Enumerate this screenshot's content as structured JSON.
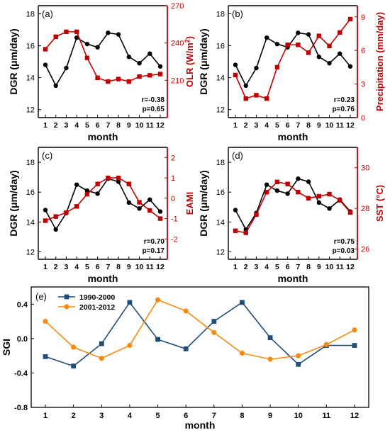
{
  "colors": {
    "black": "#000000",
    "red": "#c00000",
    "blue": "#1f4e79",
    "orange": "#f28c12",
    "axis": "#000000"
  },
  "chart_data": [
    {
      "panel": "(a)",
      "type": "line",
      "xlabel": "month",
      "x": [
        1,
        2,
        3,
        4,
        5,
        6,
        7,
        8,
        9,
        10,
        11,
        12
      ],
      "left_axis": {
        "label": "DGR (μm/day)",
        "ylim": [
          11.5,
          18.5
        ],
        "ticks": [
          12,
          14,
          16,
          18
        ]
      },
      "right_axis": {
        "label_main": "OLR (W/m",
        "label_sup": "2",
        "label_end": ")",
        "ylim": [
          180,
          270
        ],
        "ticks": [
          180,
          210,
          240,
          270
        ],
        "tick_labels": [
          "",
          "210",
          "240",
          "270"
        ]
      },
      "series": [
        {
          "axis": "left",
          "color": "#000000",
          "marker": "circle",
          "values": [
            14.8,
            13.5,
            14.6,
            16.5,
            16.1,
            15.9,
            16.8,
            16.7,
            15.3,
            14.9,
            15.5,
            14.7
          ]
        },
        {
          "axis": "right",
          "color": "#c00000",
          "marker": "square",
          "values": [
            235,
            245,
            249,
            249,
            228,
            212,
            209,
            211,
            209,
            213,
            214,
            215
          ]
        }
      ],
      "annotation": [
        "r=-0.38",
        "p=0.65"
      ]
    },
    {
      "panel": "(b)",
      "type": "line",
      "xlabel": "month",
      "x": [
        1,
        2,
        3,
        4,
        5,
        6,
        7,
        8,
        9,
        10,
        11,
        12
      ],
      "left_axis": {
        "label": "DGR (μm/day)",
        "ylim": [
          11.5,
          18.5
        ],
        "ticks": [
          12,
          14,
          16,
          18
        ]
      },
      "right_axis": {
        "label_main": "Precipitation (mm/day)",
        "label_sup": "",
        "label_end": "",
        "ylim": [
          0,
          10
        ],
        "ticks": [
          0,
          3,
          6,
          9
        ],
        "tick_labels": [
          "0",
          "3",
          "6",
          "9"
        ]
      },
      "series": [
        {
          "axis": "left",
          "color": "#000000",
          "marker": "circle",
          "values": [
            14.8,
            13.5,
            14.6,
            16.5,
            16.1,
            15.9,
            16.8,
            16.7,
            15.3,
            14.9,
            15.5,
            14.7
          ]
        },
        {
          "axis": "right",
          "color": "#c00000",
          "marker": "square",
          "values": [
            3.8,
            1.7,
            2.0,
            1.7,
            4.5,
            6.5,
            6.5,
            5.8,
            7.3,
            6.4,
            7.6,
            8.8
          ]
        }
      ],
      "annotation": [
        "r=0.23",
        "p=0.76"
      ]
    },
    {
      "panel": "(c)",
      "type": "line",
      "xlabel": "month",
      "x": [
        1,
        2,
        3,
        4,
        5,
        6,
        7,
        8,
        9,
        10,
        11,
        12
      ],
      "left_axis": {
        "label": "DGR (μm/day)",
        "ylim": [
          11.5,
          19
        ],
        "ticks": [
          12,
          14,
          16,
          18
        ]
      },
      "right_axis": {
        "label_main": "EAMI",
        "label_sup": "",
        "label_end": "",
        "ylim": [
          -3,
          2.5
        ],
        "ticks": [
          -2,
          -1,
          0,
          1,
          2
        ],
        "tick_labels": [
          "-2",
          "-1",
          "0",
          "1",
          "2"
        ]
      },
      "series": [
        {
          "axis": "left",
          "color": "#000000",
          "marker": "circle",
          "values": [
            14.8,
            13.5,
            14.6,
            16.5,
            16.1,
            15.9,
            16.9,
            16.7,
            15.3,
            14.9,
            15.5,
            14.7
          ]
        },
        {
          "axis": "right",
          "color": "#c00000",
          "marker": "square",
          "values": [
            -1.1,
            -0.9,
            -0.7,
            -0.4,
            0.2,
            0.7,
            1.0,
            1.0,
            0.7,
            -0.2,
            -0.6,
            -1.0
          ]
        }
      ],
      "annotation": [
        "r=0.70",
        "p=0.17"
      ]
    },
    {
      "panel": "(d)",
      "type": "line",
      "xlabel": "month",
      "x": [
        1,
        2,
        3,
        4,
        5,
        6,
        7,
        8,
        9,
        10,
        11,
        12
      ],
      "left_axis": {
        "label": "DGR (μm/day)",
        "ylim": [
          11.5,
          19
        ],
        "ticks": [
          12,
          14,
          16,
          18
        ]
      },
      "right_axis": {
        "label_main": "SST (°C)",
        "label_sup": "",
        "label_end": "",
        "ylim": [
          25.5,
          31
        ],
        "ticks": [
          26,
          28,
          30
        ],
        "tick_labels": [
          "26",
          "28",
          "30"
        ]
      },
      "series": [
        {
          "axis": "left",
          "color": "#000000",
          "marker": "circle",
          "values": [
            14.8,
            13.5,
            14.6,
            16.5,
            16.1,
            15.9,
            16.9,
            16.7,
            15.3,
            14.9,
            15.5,
            14.7
          ]
        },
        {
          "axis": "right",
          "color": "#c00000",
          "marker": "square",
          "values": [
            26.9,
            26.8,
            27.7,
            28.8,
            29.3,
            29.2,
            28.8,
            28.5,
            28.6,
            28.7,
            28.4,
            27.8
          ]
        }
      ],
      "annotation": [
        "r=0.75",
        "p=0.03"
      ]
    },
    {
      "panel": "(e)",
      "type": "line",
      "xlabel": "month",
      "ylabel": "SGI",
      "x": [
        1,
        2,
        3,
        4,
        5,
        6,
        7,
        8,
        9,
        10,
        11,
        12
      ],
      "ylim": [
        -0.8,
        0.6
      ],
      "yticks": [
        -0.8,
        -0.4,
        0.0,
        0.4
      ],
      "ytick_labels": [
        "-0.8",
        "-0.4",
        "0.0",
        "0.4"
      ],
      "legend_position": "top-left",
      "series": [
        {
          "name": "1990-2000",
          "color": "#1f4e79",
          "marker": "square",
          "values": [
            -0.21,
            -0.32,
            -0.06,
            0.42,
            -0.01,
            -0.12,
            0.2,
            0.42,
            0.01,
            -0.3,
            -0.08,
            -0.08
          ]
        },
        {
          "name": "2001-2012",
          "color": "#f28c12",
          "marker": "circle",
          "values": [
            0.2,
            -0.1,
            -0.23,
            -0.08,
            0.45,
            0.32,
            0.07,
            -0.17,
            -0.24,
            -0.2,
            -0.07,
            0.1
          ]
        }
      ]
    }
  ]
}
